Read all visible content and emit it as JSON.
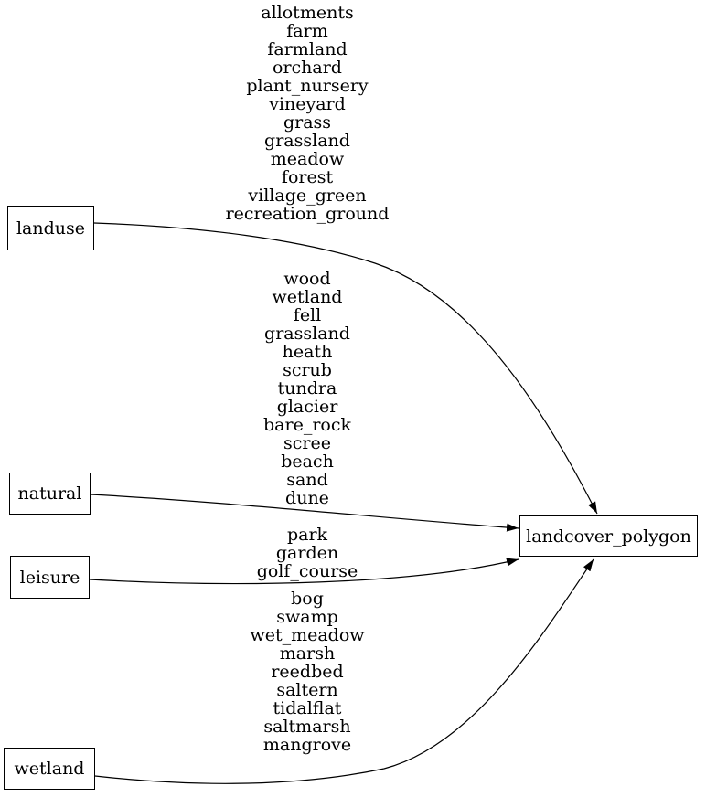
{
  "diagram": {
    "background": "#ffffff",
    "stroke_color": "#000000",
    "text_color": "#000000",
    "node_fill": "#ffffff",
    "nodes": [
      {
        "id": "landuse",
        "label": "landuse"
      },
      {
        "id": "natural",
        "label": "natural"
      },
      {
        "id": "leisure",
        "label": "leisure"
      },
      {
        "id": "wetland",
        "label": "wetland"
      },
      {
        "id": "landcover_polygon",
        "label": "landcover_polygon"
      }
    ],
    "edges": [
      {
        "from": "landuse",
        "to": "landcover_polygon",
        "values": [
          "allotments",
          "farm",
          "farmland",
          "orchard",
          "plant_nursery",
          "vineyard",
          "grass",
          "grassland",
          "meadow",
          "forest",
          "village_green",
          "recreation_ground"
        ]
      },
      {
        "from": "natural",
        "to": "landcover_polygon",
        "values": [
          "wood",
          "wetland",
          "fell",
          "grassland",
          "heath",
          "scrub",
          "tundra",
          "glacier",
          "bare_rock",
          "scree",
          "beach",
          "sand",
          "dune"
        ]
      },
      {
        "from": "leisure",
        "to": "landcover_polygon",
        "values": [
          "park",
          "garden",
          "golf_course"
        ]
      },
      {
        "from": "wetland",
        "to": "landcover_polygon",
        "values": [
          "bog",
          "swamp",
          "wet_meadow",
          "marsh",
          "reedbed",
          "saltern",
          "tidalflat",
          "saltmarsh",
          "mangrove"
        ]
      }
    ]
  }
}
